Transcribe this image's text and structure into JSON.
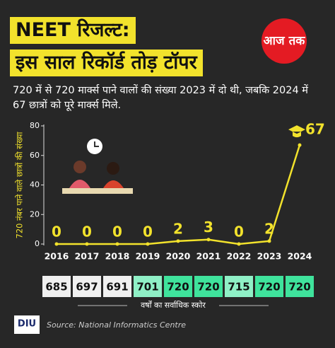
{
  "header": {
    "title_lines": [
      "NEET रिजल्ट:",
      "इस साल रिकॉर्ड तोड़ टॉपर"
    ],
    "logo": "आज तक",
    "subtitle": "720 में से 720 मार्क्स पाने वालों की संख्या 2023 में दो थी, जबकि 2024 में 67 छात्रों को पूरे मार्क्स मिले."
  },
  "chart_data": {
    "type": "line",
    "ylabel": "720 नंबर पाने वाले छात्रों की संख्या",
    "categories": [
      "2016",
      "2017",
      "2018",
      "2019",
      "2020",
      "2021",
      "2022",
      "2023",
      "2024"
    ],
    "values": [
      0,
      0,
      0,
      0,
      2,
      3,
      0,
      2,
      67
    ],
    "color": "#f2e22c",
    "ylim": [
      0,
      80
    ],
    "yticks": [
      0,
      20,
      40,
      60,
      80
    ]
  },
  "score_table": {
    "values": [
      "685",
      "697",
      "691",
      "701",
      "720",
      "720",
      "715",
      "720",
      "720"
    ],
    "box_colors": [
      "#f0f0f0",
      "#f0f0f0",
      "#f0f0f0",
      "#8ff0c6",
      "#3fe39c",
      "#3fe39c",
      "#8ff0c6",
      "#3fe39c",
      "#3fe39c"
    ],
    "caption": "वर्षों का सर्वाधिक स्कोर"
  },
  "footer": {
    "logo": "DIU",
    "source": "Source: National Informatics Centre"
  }
}
